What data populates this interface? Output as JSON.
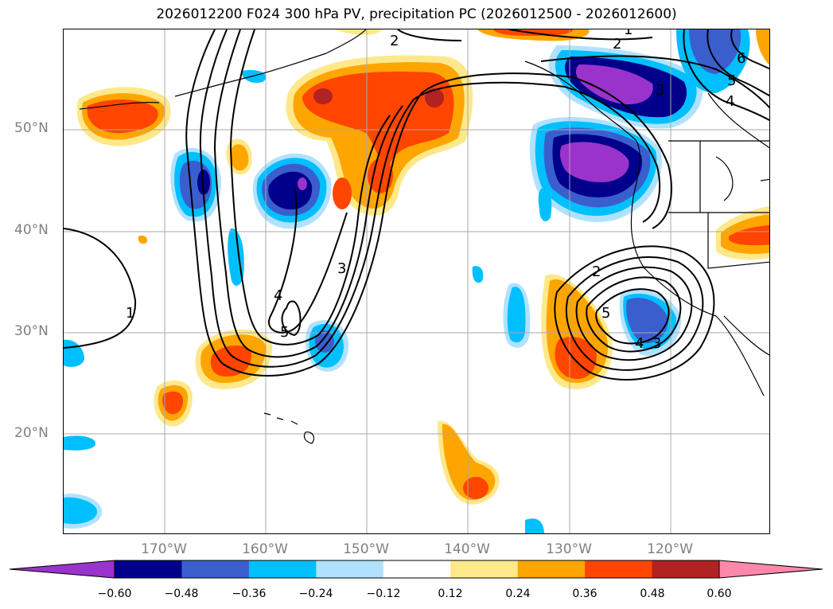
{
  "title": "2026012200 F024 300 hPa PV, precipitation PC (2026012500 - 2026012600)",
  "lat_labels": [
    "50°N",
    "40°N",
    "30°N",
    "20°N"
  ],
  "lon_labels": [
    "170°W",
    "160°W",
    "150°W",
    "140°W",
    "130°W",
    "120°W"
  ],
  "pv_contour_labels": [
    "1",
    "2",
    "3",
    "4",
    "5",
    "6"
  ],
  "colorbar": {
    "ticks": [
      "−0.60",
      "−0.48",
      "−0.36",
      "−0.24",
      "−0.12",
      "0.12",
      "0.24",
      "0.36",
      "0.48",
      "0.60"
    ],
    "colors": [
      "#9933cc",
      "#00008b",
      "#3a5fcd",
      "#00bfff",
      "#b0e2ff",
      "#ffffff",
      "#ffe88a",
      "#ffa500",
      "#ff4500",
      "#b22222",
      "#ff88aa"
    ]
  },
  "map_region": {
    "lon_range": [
      "180°",
      "110°W"
    ],
    "lat_range": [
      "10°N",
      "60°N"
    ],
    "graticule": "10 degree grid"
  }
}
